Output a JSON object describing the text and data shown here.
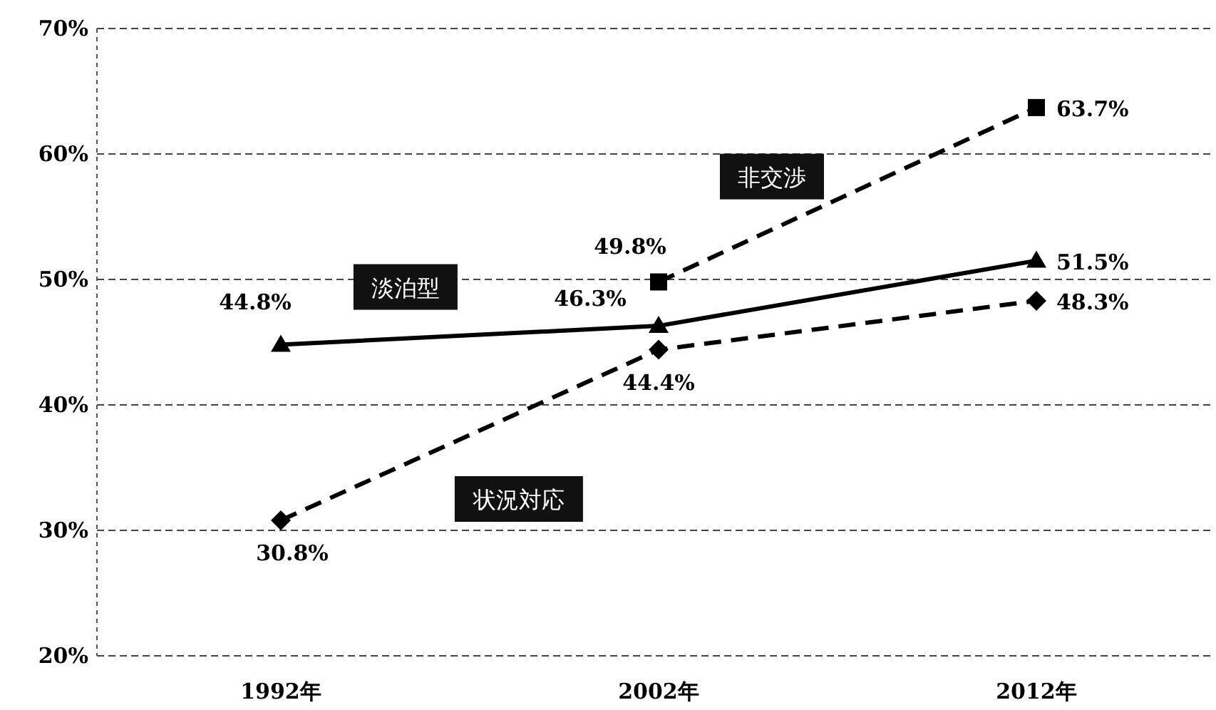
{
  "chart_data": {
    "type": "line",
    "categories": [
      "1992年",
      "2002年",
      "2012年"
    ],
    "series": [
      {
        "name": "非交渉",
        "color": "#000000",
        "values": [
          null,
          49.8,
          63.7
        ],
        "value_labels": [
          null,
          "49.8%",
          "63.7%"
        ],
        "marker": "square",
        "line_style": "dashed"
      },
      {
        "name": "淡泊型",
        "color": "#000000",
        "values": [
          44.8,
          46.3,
          51.5
        ],
        "value_labels": [
          "44.8%",
          "46.3%",
          "51.5%"
        ],
        "marker": "triangle",
        "line_style": "solid"
      },
      {
        "name": "状況対応",
        "color": "#000000",
        "values": [
          30.8,
          44.4,
          48.3
        ],
        "value_labels": [
          "30.8%",
          "44.4%",
          "48.3%"
        ],
        "marker": "diamond",
        "line_style": "dashed"
      }
    ],
    "ylim": [
      20,
      70
    ],
    "yticks": [
      {
        "value": 20,
        "label": "20%"
      },
      {
        "value": 30,
        "label": "30%"
      },
      {
        "value": 40,
        "label": "40%"
      },
      {
        "value": 50,
        "label": "50%"
      },
      {
        "value": 60,
        "label": "60%"
      },
      {
        "value": 70,
        "label": "70%"
      }
    ],
    "grid": "y"
  }
}
